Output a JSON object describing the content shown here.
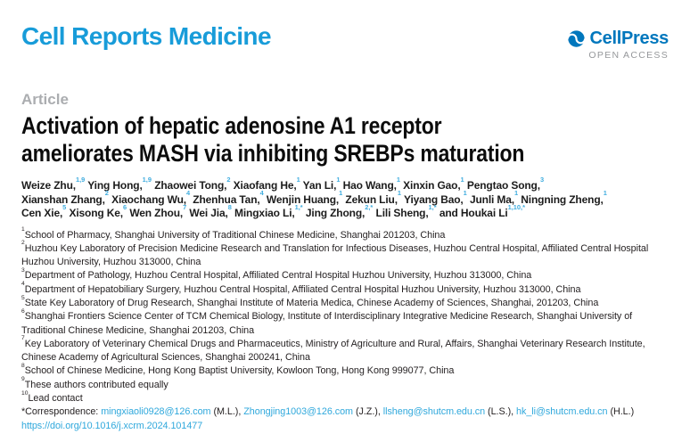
{
  "header": {
    "journal_name": "Cell Reports Medicine",
    "publisher_name": "CellPress",
    "open_access_label": "OPEN ACCESS"
  },
  "article": {
    "type_label": "Article",
    "title_lines": [
      "Activation of hepatic adenosine A1 receptor",
      "ameliorates MASH via inhibiting SREBPs maturation"
    ]
  },
  "authors": {
    "lines": [
      [
        {
          "name": "Weize Zhu,",
          "sup": "1,9"
        },
        {
          "name": "Ying Hong,",
          "sup": "1,9"
        },
        {
          "name": "Zhaowei Tong,",
          "sup": "2"
        },
        {
          "name": "Xiaofang He,",
          "sup": "1"
        },
        {
          "name": "Yan Li,",
          "sup": "1"
        },
        {
          "name": "Hao Wang,",
          "sup": "1"
        },
        {
          "name": "Xinxin Gao,",
          "sup": "1"
        },
        {
          "name": "Pengtao Song,",
          "sup": "3"
        }
      ],
      [
        {
          "name": "Xianshan Zhang,",
          "sup": "2"
        },
        {
          "name": "Xiaochang Wu,",
          "sup": "4"
        },
        {
          "name": "Zhenhua Tan,",
          "sup": "4"
        },
        {
          "name": "Wenjin Huang,",
          "sup": "1"
        },
        {
          "name": "Zekun Liu,",
          "sup": "1"
        },
        {
          "name": "Yiyang Bao,",
          "sup": "1"
        },
        {
          "name": "Junli Ma,",
          "sup": "1"
        },
        {
          "name": "Ningning Zheng,",
          "sup": "1"
        }
      ],
      [
        {
          "name": "Cen Xie,",
          "sup": "5"
        },
        {
          "name": "Xisong Ke,",
          "sup": "6"
        },
        {
          "name": "Wen Zhou,",
          "sup": "7"
        },
        {
          "name": "Wei Jia,",
          "sup": "8"
        },
        {
          "name": "Mingxiao Li,",
          "sup": "1,*"
        },
        {
          "name": "Jing Zhong,",
          "sup": "2,*"
        },
        {
          "name": "Lili Sheng,",
          "sup": "1,*"
        },
        {
          "name": "and Houkai Li",
          "sup": "1,10,*"
        }
      ]
    ]
  },
  "affiliations": [
    {
      "sup": "1",
      "text": "School of Pharmacy, Shanghai University of Traditional Chinese Medicine, Shanghai 201203, China"
    },
    {
      "sup": "2",
      "text": "Huzhou Key Laboratory of Precision Medicine Research and Translation for Infectious Diseases, Huzhou Central Hospital, Affiliated Central Hospital Huzhou University, Huzhou 313000, China"
    },
    {
      "sup": "3",
      "text": "Department of Pathology, Huzhou Central Hospital, Affiliated Central Hospital Huzhou University, Huzhou 313000, China"
    },
    {
      "sup": "4",
      "text": "Department of Hepatobiliary Surgery, Huzhou Central Hospital, Affiliated Central Hospital Huzhou University, Huzhou 313000, China"
    },
    {
      "sup": "5",
      "text": "State Key Laboratory of Drug Research, Shanghai Institute of Materia Medica, Chinese Academy of Sciences, Shanghai, 201203, China"
    },
    {
      "sup": "6",
      "text": "Shanghai Frontiers Science Center of TCM Chemical Biology, Institute of Interdisciplinary Integrative Medicine Research, Shanghai University of Traditional Chinese Medicine, Shanghai 201203, China"
    },
    {
      "sup": "7",
      "text": "Key Laboratory of Veterinary Chemical Drugs and Pharmaceutics, Ministry of Agriculture and Rural, Affairs, Shanghai Veterinary Research Institute, Chinese Academy of Agricultural Sciences, Shanghai 200241, China"
    },
    {
      "sup": "8",
      "text": "School of Chinese Medicine, Hong Kong Baptist University, Kowloon Tong, Hong Kong 999077, China"
    },
    {
      "sup": "9",
      "text": "These authors contributed equally"
    },
    {
      "sup": "10",
      "text": "Lead contact"
    }
  ],
  "correspondence": {
    "prefix": "*Correspondence:",
    "contacts": [
      {
        "email": "mingxiaoli0928@126.com",
        "suffix": "(M.L.),"
      },
      {
        "email": "Zhongjing1003@126.com",
        "suffix": "(J.Z.),"
      },
      {
        "email": "llsheng@shutcm.edu.cn",
        "suffix": "(L.S.),"
      },
      {
        "email": "hk_li@shutcm.edu.cn",
        "suffix": "(H.L.)"
      }
    ],
    "doi": "https://doi.org/10.1016/j.xcrm.2024.101477"
  },
  "colors": {
    "journal_logo_blue": "#189cd9",
    "publisher_logo_blue": "#0077bd",
    "open_access_gray": "#96989b",
    "article_label_gray": "#abadb0",
    "author_superscript_blue": "#41addf",
    "link_blue": "#2fa8dc",
    "body_text": "#231f20"
  }
}
